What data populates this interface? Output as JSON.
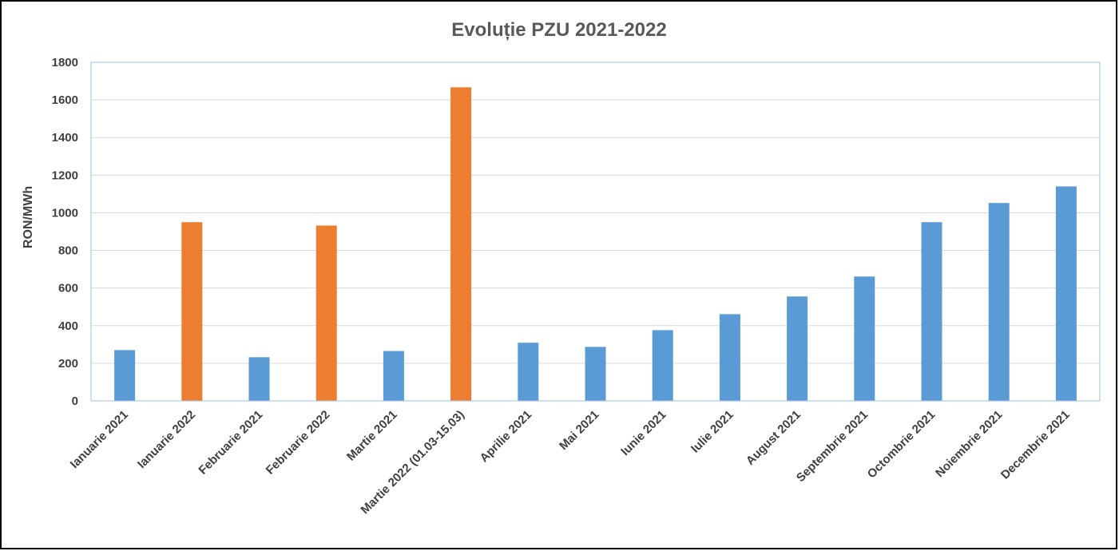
{
  "chart_data": {
    "type": "bar",
    "title": "Evoluție PZU 2021-2022",
    "xlabel": "",
    "ylabel": "RON/MWh",
    "ylim": [
      0,
      1800
    ],
    "yticks": [
      "0",
      "200",
      "400",
      "600",
      "800",
      "1000",
      "1200",
      "1400",
      "1600",
      "1800"
    ],
    "grid": true,
    "legend": "none",
    "colors": {
      "2021": "#5B9BD5",
      "2022": "#ED7D31"
    },
    "categories": [
      "Ianuarie 2021",
      "Ianuarie 2022",
      "Februarie 2021",
      "Februarie 2022",
      "Martie 2021",
      "Martie 2022 (01.03-15.03)",
      "Aprilie 2021",
      "Mai 2021",
      "Iunie 2021",
      "Iulie 2021",
      "August 2021",
      "Septembrie 2021",
      "Octombrie 2021",
      "Noiembrie 2021",
      "Decembrie 2021"
    ],
    "values": [
      270,
      950,
      232,
      932,
      265,
      1667,
      309,
      287,
      376,
      461,
      555,
      661,
      950,
      1052,
      1140
    ],
    "year_group": [
      "2021",
      "2022",
      "2021",
      "2022",
      "2021",
      "2022",
      "2021",
      "2021",
      "2021",
      "2021",
      "2021",
      "2021",
      "2021",
      "2021",
      "2021"
    ]
  }
}
